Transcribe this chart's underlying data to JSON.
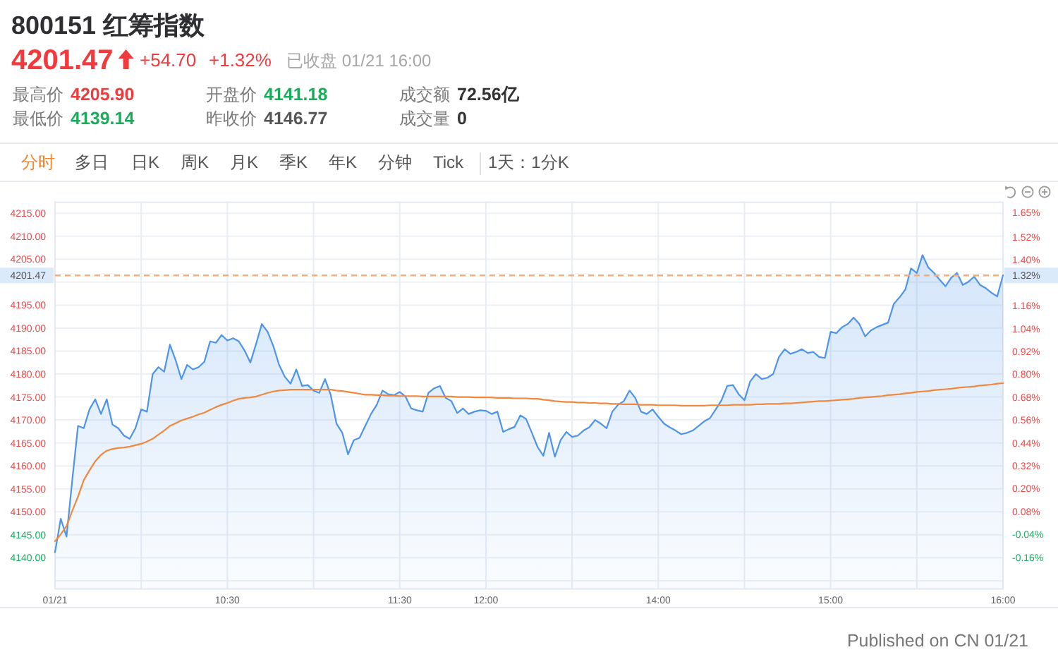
{
  "chart_data": {
    "type": "line",
    "title": "800151 红筹指数",
    "annotations": [
      "4201.47",
      "+54.70",
      "+1.32%",
      "已收盘 01/21 16:00",
      "最高价",
      "4205.90",
      "开盘价",
      "4141.18",
      "成交额",
      "72.56亿",
      "最低价",
      "4139.14",
      "昨收价",
      "4146.77",
      "成交量",
      "0",
      "分时",
      "多日",
      "日K",
      "周K",
      "月K",
      "季K",
      "年K",
      "分钟",
      "Tick",
      "1天：1分K",
      "Published on CN 01/21",
      "1.32%"
    ],
    "categories": [
      "01/21",
      null,
      null,
      null,
      null,
      null,
      null,
      null,
      null,
      null,
      null,
      null,
      null,
      null,
      null,
      null,
      null,
      null,
      null,
      null,
      null,
      null,
      null,
      null,
      null,
      null,
      null,
      null,
      null,
      null,
      "10:30",
      null,
      null,
      null,
      null,
      null,
      null,
      null,
      null,
      null,
      null,
      null,
      null,
      null,
      null,
      null,
      null,
      null,
      null,
      null,
      null,
      null,
      null,
      null,
      null,
      null,
      null,
      null,
      null,
      null,
      "11:30",
      null,
      null,
      null,
      null,
      null,
      null,
      null,
      null,
      null,
      null,
      null,
      null,
      null,
      null,
      "12:00",
      null,
      null,
      null,
      null,
      null,
      null,
      null,
      null,
      null,
      null,
      null,
      null,
      null,
      null,
      null,
      null,
      null,
      null,
      null,
      null,
      null,
      null,
      null,
      null,
      null,
      null,
      null,
      null,
      null,
      "14:00",
      null,
      null,
      null,
      null,
      null,
      null,
      null,
      null,
      null,
      null,
      null,
      null,
      null,
      null,
      null,
      null,
      null,
      null,
      null,
      null,
      null,
      null,
      null,
      null,
      null,
      null,
      null,
      null,
      null,
      "15:00",
      null,
      null,
      null,
      null,
      null,
      null,
      null,
      null,
      null,
      null,
      null,
      null,
      null,
      null,
      null,
      null,
      null,
      null,
      null,
      null,
      null,
      null,
      null,
      null,
      null,
      null,
      null,
      null,
      null,
      "16:00"
    ],
    "ylim": [
      4133.2,
      4217.4
    ],
    "yticks": [
      {
        "value": 4135,
        "label": null
      },
      {
        "value": 4140,
        "label": "4140.00"
      },
      {
        "value": 4145,
        "label": "4145.00"
      },
      {
        "value": 4150,
        "label": "4150.00"
      },
      {
        "value": 4155,
        "label": "4155.00"
      },
      {
        "value": 4160,
        "label": "4160.00"
      },
      {
        "value": 4165,
        "label": "4165.00"
      },
      {
        "value": 4170,
        "label": "4170.00"
      },
      {
        "value": 4175,
        "label": "4175.00"
      },
      {
        "value": 4180,
        "label": "4180.00"
      },
      {
        "value": 4185,
        "label": "4185.00"
      },
      {
        "value": 4190,
        "label": "4190.00"
      },
      {
        "value": 4195,
        "label": "4195.00"
      },
      {
        "value": 4200,
        "label": null
      },
      {
        "value": 4205,
        "label": "4205.00"
      },
      {
        "value": 4210,
        "label": "4210.00"
      },
      {
        "value": 4215,
        "label": "4215.00"
      }
    ],
    "y2lim": [
      -0.327,
      1.703
    ],
    "y2ticks": [
      {
        "value": -0.16,
        "label": "-0.16%"
      },
      {
        "value": -0.04,
        "label": "-0.04%"
      },
      {
        "value": 0.08,
        "label": "0.08%"
      },
      {
        "value": 0.2,
        "label": "0.20%"
      },
      {
        "value": 0.32,
        "label": "0.32%"
      },
      {
        "value": 0.44,
        "label": "0.44%"
      },
      {
        "value": 0.56,
        "label": "0.56%"
      },
      {
        "value": 0.68,
        "label": "0.68%"
      },
      {
        "value": 0.8,
        "label": "0.80%"
      },
      {
        "value": 0.92,
        "label": "0.92%"
      },
      {
        "value": 1.04,
        "label": "1.04%"
      },
      {
        "value": 1.16,
        "label": "1.16%"
      },
      {
        "value": 1.4,
        "label": "1.40%"
      },
      {
        "value": 1.52,
        "label": "1.52%"
      },
      {
        "value": 1.65,
        "label": "1.65%"
      }
    ],
    "grid": true,
    "ref_lines": [
      {
        "axis": "y",
        "value": 4201.47,
        "label": "4201.47",
        "color": "#f7ab74",
        "line_style": "dashed"
      }
    ],
    "series": [
      {
        "type": "area",
        "color": "#4d94ea",
        "values": [
          4141.2,
          4148.5,
          4144.6,
          4156.9,
          4168.7,
          4168.2,
          4172.3,
          4174.5,
          4171.3,
          4174.5,
          4169.0,
          4168.2,
          4166.6,
          4165.9,
          4168.2,
          4172.3,
          4171.8,
          4180.0,
          4181.5,
          4180.5,
          4186.4,
          4183.0,
          4178.9,
          4182.0,
          4181.0,
          4181.5,
          4182.7,
          4187.1,
          4186.8,
          4188.5,
          4187.3,
          4187.8,
          4187.1,
          4185.1,
          4182.5,
          4186.6,
          4190.9,
          4189.2,
          4186.1,
          4182.0,
          4179.4,
          4177.9,
          4181.0,
          4177.4,
          4177.6,
          4176.4,
          4175.9,
          4178.9,
          4175.4,
          4169.2,
          4167.2,
          4162.5,
          4165.6,
          4166.1,
          4168.7,
          4171.3,
          4173.3,
          4176.4,
          4175.6,
          4175.4,
          4176.1,
          4175.1,
          4172.5,
          4172.1,
          4171.8,
          4175.9,
          4176.9,
          4177.4,
          4174.8,
          4174.1,
          4171.5,
          4172.5,
          4171.3,
          4171.8,
          4172.1,
          4172.0,
          4171.3,
          4171.8,
          4167.4,
          4168.0,
          4168.5,
          4171.0,
          4170.2,
          4167.2,
          4164.1,
          4162.2,
          4167.2,
          4162.0,
          4165.6,
          4167.4,
          4166.3,
          4166.6,
          4167.7,
          4168.4,
          4170.0,
          4169.2,
          4168.2,
          4171.8,
          4173.3,
          4174.1,
          4176.4,
          4174.8,
          4171.8,
          4171.3,
          4172.3,
          4170.7,
          4169.2,
          4168.4,
          4167.7,
          4166.9,
          4167.2,
          4167.7,
          4168.7,
          4169.7,
          4170.4,
          4172.3,
          4174.3,
          4177.4,
          4177.6,
          4175.6,
          4174.3,
          4178.4,
          4180.0,
          4178.9,
          4179.2,
          4180.0,
          4183.7,
          4185.4,
          4184.4,
          4184.8,
          4185.4,
          4184.6,
          4184.8,
          4183.7,
          4183.5,
          4189.2,
          4188.9,
          4190.2,
          4190.9,
          4192.3,
          4190.9,
          4188.2,
          4189.5,
          4190.2,
          4190.7,
          4191.2,
          4195.3,
          4196.7,
          4198.4,
          4203.0,
          4202.0,
          4205.9,
          4203.2,
          4202.0,
          4200.5,
          4199.1,
          4201.0,
          4202.0,
          4199.4,
          4200.1,
          4201.2,
          4199.4,
          4198.7,
          4197.7,
          4196.9,
          4201.5
        ]
      },
      {
        "type": "line",
        "color": "#f0883e",
        "values": [
          4143.6,
          4145.1,
          4146.9,
          4150.2,
          4153.3,
          4156.9,
          4159.0,
          4161.0,
          4162.4,
          4163.3,
          4163.7,
          4163.9,
          4164.0,
          4164.2,
          4164.5,
          4164.8,
          4165.3,
          4165.9,
          4166.8,
          4167.7,
          4168.7,
          4169.3,
          4169.9,
          4170.3,
          4170.7,
          4171.2,
          4171.6,
          4172.2,
          4172.8,
          4173.3,
          4173.7,
          4174.2,
          4174.6,
          4174.8,
          4174.9,
          4175.1,
          4175.5,
          4175.9,
          4176.2,
          4176.4,
          4176.5,
          4176.6,
          4176.6,
          4176.6,
          4176.6,
          4176.6,
          4176.6,
          4176.6,
          4176.6,
          4176.4,
          4176.3,
          4176.1,
          4175.9,
          4175.7,
          4175.5,
          4175.5,
          4175.4,
          4175.4,
          4175.3,
          4175.3,
          4175.2,
          4175.2,
          4175.2,
          4175.2,
          4175.1,
          4175.1,
          4175.1,
          4175.1,
          4175.1,
          4175.1,
          4175.0,
          4175.0,
          4175.0,
          4174.9,
          4174.9,
          4174.9,
          4174.9,
          4174.8,
          4174.8,
          4174.8,
          4174.7,
          4174.7,
          4174.7,
          4174.6,
          4174.6,
          4174.4,
          4174.3,
          4174.1,
          4174.0,
          4173.9,
          4173.9,
          4173.8,
          4173.8,
          4173.7,
          4173.7,
          4173.6,
          4173.6,
          4173.5,
          4173.5,
          4173.4,
          4173.4,
          4173.4,
          4173.3,
          4173.3,
          4173.3,
          4173.2,
          4173.2,
          4173.2,
          4173.2,
          4173.1,
          4173.1,
          4173.1,
          4173.1,
          4173.1,
          4173.2,
          4173.2,
          4173.2,
          4173.2,
          4173.3,
          4173.3,
          4173.3,
          4173.3,
          4173.4,
          4173.4,
          4173.5,
          4173.5,
          4173.5,
          4173.6,
          4173.6,
          4173.7,
          4173.8,
          4173.9,
          4174.0,
          4174.1,
          4174.1,
          4174.2,
          4174.3,
          4174.4,
          4174.5,
          4174.6,
          4174.8,
          4174.9,
          4175.0,
          4175.1,
          4175.2,
          4175.4,
          4175.5,
          4175.6,
          4175.8,
          4175.9,
          4176.1,
          4176.2,
          4176.3,
          4176.5,
          4176.6,
          4176.7,
          4176.8,
          4177.0,
          4177.1,
          4177.2,
          4177.3,
          4177.5,
          4177.6,
          4177.7,
          4177.9,
          4178.0
        ]
      }
    ]
  }
}
